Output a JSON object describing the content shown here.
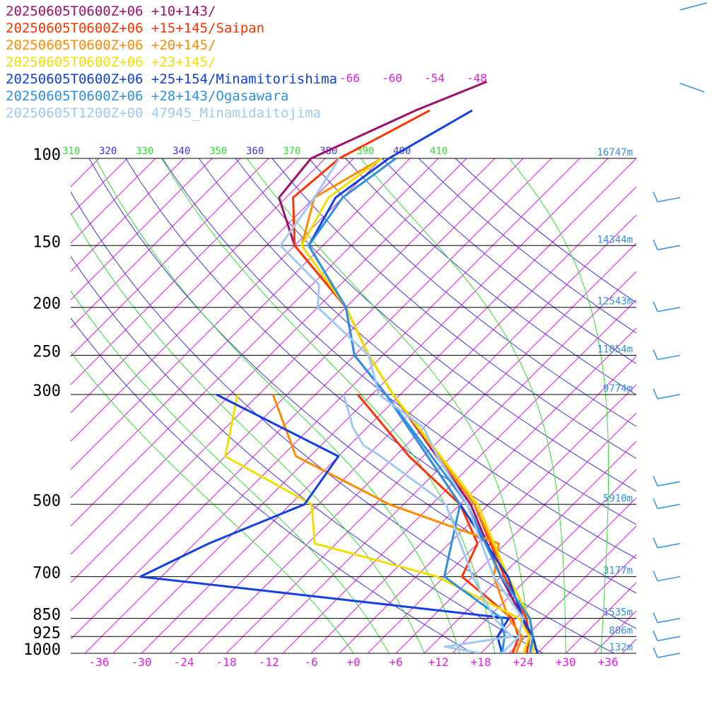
{
  "chart_data": {
    "type": "line",
    "kind": "skew-T log-P sounding",
    "legend": [
      {
        "label": "20250605T0600Z+06 +10+143/",
        "color": "#a0106a"
      },
      {
        "label": "20250605T0600Z+06 +15+145/Saipan",
        "color": "#ff3300"
      },
      {
        "label": "20250605T0600Z+06 +20+145/",
        "color": "#ff8c00"
      },
      {
        "label": "20250605T0600Z+06 +23+145/",
        "color": "#f0e000"
      },
      {
        "label": "20250605T0600Z+06 +25+154/Minamitorishima",
        "color": "#1040e0"
      },
      {
        "label": "20250605T0600Z+06 +28+143/Ogasawara",
        "color": "#3090e0"
      },
      {
        "label": "20250605T1200Z+00 47945_Minamidaitojima",
        "color": "#a0c8f0"
      }
    ],
    "pressure_levels": [
      {
        "p": 100,
        "label": "100",
        "height": "16747m"
      },
      {
        "p": 150,
        "label": "150",
        "height": "14344m"
      },
      {
        "p": 200,
        "label": "200",
        "height": "12543m"
      },
      {
        "p": 250,
        "label": "250",
        "height": "11054m"
      },
      {
        "p": 300,
        "label": "300",
        "height": "9774m"
      },
      {
        "p": 500,
        "label": "500",
        "height": "5910m"
      },
      {
        "p": 700,
        "label": "700",
        "height": "3177m"
      },
      {
        "p": 850,
        "label": "850",
        "height": "1535m"
      },
      {
        "p": 925,
        "label": "925",
        "height": "806m"
      },
      {
        "p": 1000,
        "label": "1000",
        "height": "132m"
      }
    ],
    "temperature_ticks": [
      "-36",
      "-30",
      "-24",
      "-18",
      "-12",
      "-6",
      "+0",
      "+6",
      "+12",
      "+18",
      "+24",
      "+30",
      "+36"
    ],
    "temperature_values": [
      -36,
      -30,
      -24,
      -18,
      -12,
      -6,
      0,
      6,
      12,
      18,
      24,
      30,
      36
    ],
    "isotherm_top_labels": [
      "-66",
      "-60",
      "-54",
      "-48"
    ],
    "isotherm_top_values": [
      -66,
      -60,
      -54,
      -48
    ],
    "theta_labels": [
      "310",
      "320",
      "330",
      "340",
      "350",
      "360",
      "370",
      "380",
      "390",
      "400",
      "410"
    ],
    "theta_values": [
      310,
      320,
      330,
      340,
      350,
      360,
      370,
      380,
      390,
      400,
      410
    ],
    "xlim": [
      -40,
      40
    ],
    "ylim": [
      1000,
      100
    ],
    "colors": {
      "isotherm": "#e020e0",
      "dry_adiabat": "#4030e0",
      "moist_adiabat": "#30e030",
      "isobar": "#000000",
      "height_label": "#3090e0",
      "wind_barb": "#3090e0"
    },
    "series": [
      {
        "name": "20250605T0600Z+06 +10+143/",
        "color": "#a0106a",
        "temperature": [
          [
            1000,
            24.5
          ],
          [
            925,
            22.5
          ],
          [
            850,
            19
          ],
          [
            700,
            10
          ],
          [
            500,
            -4.5
          ],
          [
            300,
            -31
          ],
          [
            250,
            -40
          ],
          [
            200,
            -50
          ],
          [
            150,
            -66
          ],
          [
            120,
            -75
          ],
          [
            100,
            -76
          ],
          [
            80,
            -68
          ],
          [
            70,
            -62
          ]
        ],
        "dewpoint": []
      },
      {
        "name": "20250605T0600Z+06 +15+145/Saipan",
        "color": "#ff3300",
        "temperature": [
          [
            1000,
            24.5
          ],
          [
            925,
            22.5
          ],
          [
            850,
            19.5
          ],
          [
            700,
            10.5
          ],
          [
            500,
            -4
          ],
          [
            300,
            -31
          ],
          [
            250,
            -40
          ],
          [
            200,
            -50
          ],
          [
            150,
            -66
          ],
          [
            120,
            -73
          ],
          [
            100,
            -72
          ],
          [
            80,
            -66
          ]
        ],
        "dewpoint": [
          [
            1000,
            22.5
          ],
          [
            925,
            21
          ],
          [
            850,
            17.5
          ],
          [
            700,
            4.5
          ],
          [
            600,
            2
          ],
          [
            500,
            -6
          ],
          [
            400,
            -20
          ],
          [
            300,
            -36
          ]
        ]
      },
      {
        "name": "20250605T0600Z+06 +20+145/",
        "color": "#ff8c00",
        "temperature": [
          [
            1000,
            25
          ],
          [
            925,
            23
          ],
          [
            850,
            20
          ],
          [
            700,
            11
          ],
          [
            500,
            -4
          ],
          [
            300,
            -31
          ],
          [
            250,
            -40
          ],
          [
            200,
            -50
          ],
          [
            150,
            -65
          ],
          [
            120,
            -70
          ],
          [
            100,
            -66
          ]
        ],
        "dewpoint": [
          [
            1000,
            23
          ],
          [
            925,
            21.5
          ],
          [
            850,
            17
          ],
          [
            700,
            9
          ],
          [
            600,
            5
          ],
          [
            500,
            -16
          ],
          [
            400,
            -36
          ],
          [
            300,
            -48
          ]
        ]
      },
      {
        "name": "20250605T0600Z+06 +23+145/",
        "color": "#f0e000",
        "temperature": [
          [
            1000,
            25.5
          ],
          [
            925,
            23
          ],
          [
            850,
            20
          ],
          [
            700,
            11
          ],
          [
            500,
            -3.5
          ],
          [
            300,
            -31
          ],
          [
            250,
            -40
          ],
          [
            200,
            -50
          ],
          [
            150,
            -65
          ],
          [
            120,
            -68
          ],
          [
            100,
            -66
          ]
        ],
        "dewpoint": [
          [
            1000,
            24
          ],
          [
            925,
            22.5
          ],
          [
            850,
            18.5
          ],
          [
            700,
            1
          ],
          [
            600,
            -21
          ],
          [
            500,
            -27
          ],
          [
            400,
            -46
          ],
          [
            300,
            -53
          ]
        ]
      },
      {
        "name": "20250605T0600Z+06 +25+154/Minamitorishima",
        "color": "#1040e0",
        "temperature": [
          [
            1000,
            26
          ],
          [
            925,
            23
          ],
          [
            850,
            19
          ],
          [
            700,
            11
          ],
          [
            500,
            -6
          ],
          [
            300,
            -32
          ],
          [
            250,
            -42
          ],
          [
            200,
            -50
          ],
          [
            150,
            -64
          ],
          [
            120,
            -67
          ],
          [
            100,
            -65
          ],
          [
            80,
            -60
          ]
        ],
        "dewpoint": [
          [
            1000,
            21
          ],
          [
            925,
            18
          ],
          [
            850,
            17
          ],
          [
            700,
            -41
          ],
          [
            600,
            -36
          ],
          [
            500,
            -28
          ],
          [
            400,
            -30
          ],
          [
            300,
            -56
          ]
        ]
      },
      {
        "name": "20250605T0600Z+06 +28+143/Ogasawara",
        "color": "#3090e0",
        "temperature": [
          [
            1000,
            25
          ],
          [
            925,
            23
          ],
          [
            850,
            20
          ],
          [
            700,
            10
          ],
          [
            500,
            -5
          ],
          [
            300,
            -32
          ],
          [
            250,
            -42
          ],
          [
            200,
            -50
          ],
          [
            150,
            -64
          ],
          [
            120,
            -66
          ],
          [
            100,
            -64
          ]
        ],
        "dewpoint": [
          [
            1000,
            21
          ],
          [
            925,
            19
          ],
          [
            850,
            16
          ],
          [
            700,
            2
          ],
          [
            500,
            -6
          ],
          [
            300,
            -32
          ]
        ]
      },
      {
        "name": "20250605T1200Z+00 47945_Minamidaitojima",
        "color": "#a0c8f0",
        "temperature": [
          [
            1000,
            21
          ],
          [
            925,
            21
          ],
          [
            850,
            19
          ],
          [
            700,
            9
          ],
          [
            500,
            -5
          ],
          [
            400,
            -16
          ],
          [
            350,
            -22
          ],
          [
            300,
            -33
          ],
          [
            250,
            -40
          ],
          [
            200,
            -54
          ],
          [
            180,
            -57
          ],
          [
            150,
            -68
          ],
          [
            120,
            -70
          ],
          [
            100,
            -72
          ]
        ],
        "dewpoint": [
          [
            1000,
            18
          ],
          [
            970,
            12
          ],
          [
            925,
            20
          ],
          [
            850,
            15
          ],
          [
            700,
            6
          ],
          [
            500,
            -8
          ],
          [
            400,
            -24
          ],
          [
            380,
            -28
          ],
          [
            350,
            -32
          ],
          [
            300,
            -38
          ]
        ]
      }
    ]
  }
}
